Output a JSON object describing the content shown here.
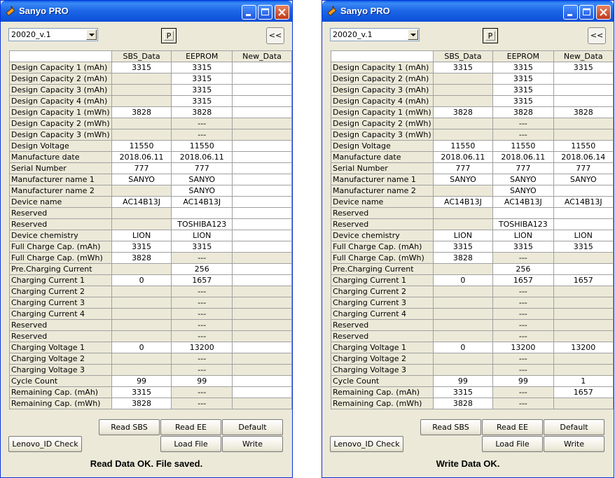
{
  "windows": [
    {
      "title": "Sanyo PRO",
      "combo_value": "20020_v.1",
      "p_button": "P",
      "back_button": "<<",
      "columns": [
        "SBS_Data",
        "EEPROM",
        "New_Data"
      ],
      "rows": [
        {
          "label": "Design Capacity 1 (mAh)",
          "sbs": "3315",
          "ee": "3315",
          "new": "",
          "sbs_f": true,
          "ee_f": true,
          "new_f": true
        },
        {
          "label": "Design Capacity 2 (mAh)",
          "sbs": "",
          "ee": "3315",
          "new": "",
          "sbs_f": false,
          "ee_f": true,
          "new_f": true
        },
        {
          "label": "Design Capacity 3 (mAh)",
          "sbs": "",
          "ee": "3315",
          "new": "",
          "sbs_f": false,
          "ee_f": true,
          "new_f": true
        },
        {
          "label": "Design Capacity 4 (mAh)",
          "sbs": "",
          "ee": "3315",
          "new": "",
          "sbs_f": false,
          "ee_f": true,
          "new_f": true
        },
        {
          "label": "Design Capacity 1 (mWh)",
          "sbs": "3828",
          "ee": "3828",
          "new": "",
          "sbs_f": true,
          "ee_f": true,
          "new_f": true
        },
        {
          "label": "Design Capacity 2 (mWh)",
          "sbs": "",
          "ee": "---",
          "new": "",
          "sbs_f": false,
          "ee_f": false,
          "new_f": false
        },
        {
          "label": "Design Capacity 3 (mWh)",
          "sbs": "",
          "ee": "---",
          "new": "",
          "sbs_f": false,
          "ee_f": false,
          "new_f": false
        },
        {
          "label": "Design Voltage",
          "sbs": "11550",
          "ee": "11550",
          "new": "",
          "sbs_f": true,
          "ee_f": true,
          "new_f": true
        },
        {
          "label": "Manufacture date",
          "sbs": "2018.06.11",
          "ee": "2018.06.11",
          "new": "",
          "sbs_f": true,
          "ee_f": true,
          "new_f": true
        },
        {
          "label": "Serial Number",
          "sbs": "777",
          "ee": "777",
          "new": "",
          "sbs_f": true,
          "ee_f": true,
          "new_f": true
        },
        {
          "label": "Manufacturer name 1",
          "sbs": "SANYO",
          "ee": "SANYO",
          "new": "",
          "sbs_f": true,
          "ee_f": true,
          "new_f": true
        },
        {
          "label": "Manufacturer name 2",
          "sbs": "",
          "ee": "SANYO",
          "new": "",
          "sbs_f": false,
          "ee_f": true,
          "new_f": true
        },
        {
          "label": "Device name",
          "sbs": "AC14B13J",
          "ee": "AC14B13J",
          "new": "",
          "sbs_f": true,
          "ee_f": true,
          "new_f": true
        },
        {
          "label": "Reserved",
          "sbs": "",
          "ee": "",
          "new": "",
          "sbs_f": false,
          "ee_f": true,
          "new_f": true
        },
        {
          "label": "Reserved",
          "sbs": "",
          "ee": "TOSHIBA123",
          "new": "",
          "sbs_f": false,
          "ee_f": true,
          "new_f": true
        },
        {
          "label": "Device chemistry",
          "sbs": "LION",
          "ee": "LION",
          "new": "",
          "sbs_f": true,
          "ee_f": true,
          "new_f": true
        },
        {
          "label": "Full Charge Cap.  (mAh)",
          "sbs": "3315",
          "ee": "3315",
          "new": "",
          "sbs_f": true,
          "ee_f": true,
          "new_f": true
        },
        {
          "label": "Full Charge Cap.  (mWh)",
          "sbs": "3828",
          "ee": "---",
          "new": "",
          "sbs_f": true,
          "ee_f": false,
          "new_f": false
        },
        {
          "label": "Pre.Charging Current",
          "sbs": "",
          "ee": "256",
          "new": "",
          "sbs_f": false,
          "ee_f": true,
          "new_f": true
        },
        {
          "label": "Charging Current 1",
          "sbs": "0",
          "ee": "1657",
          "new": "",
          "sbs_f": true,
          "ee_f": true,
          "new_f": true
        },
        {
          "label": "Charging Current 2",
          "sbs": "",
          "ee": "---",
          "new": "",
          "sbs_f": false,
          "ee_f": false,
          "new_f": false
        },
        {
          "label": "Charging Current 3",
          "sbs": "",
          "ee": "---",
          "new": "",
          "sbs_f": false,
          "ee_f": false,
          "new_f": false
        },
        {
          "label": "Charging Current 4",
          "sbs": "",
          "ee": "---",
          "new": "",
          "sbs_f": false,
          "ee_f": false,
          "new_f": false
        },
        {
          "label": "Reserved",
          "sbs": "",
          "ee": "---",
          "new": "",
          "sbs_f": false,
          "ee_f": false,
          "new_f": false
        },
        {
          "label": "Reserved",
          "sbs": "",
          "ee": "---",
          "new": "",
          "sbs_f": false,
          "ee_f": false,
          "new_f": false
        },
        {
          "label": "Charging Voltage 1",
          "sbs": "0",
          "ee": "13200",
          "new": "",
          "sbs_f": true,
          "ee_f": true,
          "new_f": true
        },
        {
          "label": "Charging Voltage 2",
          "sbs": "",
          "ee": "---",
          "new": "",
          "sbs_f": false,
          "ee_f": false,
          "new_f": false
        },
        {
          "label": "Charging Voltage 3",
          "sbs": "",
          "ee": "---",
          "new": "",
          "sbs_f": false,
          "ee_f": false,
          "new_f": false
        },
        {
          "label": "Cycle Count",
          "sbs": "99",
          "ee": "99",
          "new": "",
          "sbs_f": true,
          "ee_f": true,
          "new_f": true
        },
        {
          "label": "Remaining  Cap.  (mAh)",
          "sbs": "3315",
          "ee": "---",
          "new": "",
          "sbs_f": true,
          "ee_f": false,
          "new_f": true
        },
        {
          "label": "Remaining  Cap.  (mWh)",
          "sbs": "3828",
          "ee": "---",
          "new": "",
          "sbs_f": true,
          "ee_f": false,
          "new_f": false
        }
      ],
      "buttons": {
        "read_sbs": "Read SBS",
        "read_ee": "Read  EE",
        "default": "Default",
        "lenovo": "Lenovo_ID Check",
        "load_file": "Load File",
        "write": "Write"
      },
      "status": "Read Data OK. File saved."
    },
    {
      "title": "Sanyo PRO",
      "combo_value": "20020_v.1",
      "p_button": "P",
      "back_button": "<<",
      "columns": [
        "SBS_Data",
        "EEPROM",
        "New_Data"
      ],
      "rows": [
        {
          "label": "Design Capacity 1 (mAh)",
          "sbs": "3315",
          "ee": "3315",
          "new": "3315",
          "sbs_f": true,
          "ee_f": true,
          "new_f": true
        },
        {
          "label": "Design Capacity 2 (mAh)",
          "sbs": "",
          "ee": "3315",
          "new": "",
          "sbs_f": false,
          "ee_f": true,
          "new_f": true
        },
        {
          "label": "Design Capacity 3 (mAh)",
          "sbs": "",
          "ee": "3315",
          "new": "",
          "sbs_f": false,
          "ee_f": true,
          "new_f": true
        },
        {
          "label": "Design Capacity 4 (mAh)",
          "sbs": "",
          "ee": "3315",
          "new": "",
          "sbs_f": false,
          "ee_f": true,
          "new_f": true
        },
        {
          "label": "Design Capacity 1 (mWh)",
          "sbs": "3828",
          "ee": "3828",
          "new": "3828",
          "sbs_f": true,
          "ee_f": true,
          "new_f": true
        },
        {
          "label": "Design Capacity 2 (mWh)",
          "sbs": "",
          "ee": "---",
          "new": "",
          "sbs_f": false,
          "ee_f": false,
          "new_f": false
        },
        {
          "label": "Design Capacity 3 (mWh)",
          "sbs": "",
          "ee": "---",
          "new": "",
          "sbs_f": false,
          "ee_f": false,
          "new_f": false
        },
        {
          "label": "Design Voltage",
          "sbs": "11550",
          "ee": "11550",
          "new": "11550",
          "sbs_f": true,
          "ee_f": true,
          "new_f": true
        },
        {
          "label": "Manufacture date",
          "sbs": "2018.06.11",
          "ee": "2018.06.11",
          "new": "2018.06.14",
          "sbs_f": true,
          "ee_f": true,
          "new_f": true
        },
        {
          "label": "Serial Number",
          "sbs": "777",
          "ee": "777",
          "new": "777",
          "sbs_f": true,
          "ee_f": true,
          "new_f": true
        },
        {
          "label": "Manufacturer name 1",
          "sbs": "SANYO",
          "ee": "SANYO",
          "new": "SANYO",
          "sbs_f": true,
          "ee_f": true,
          "new_f": true
        },
        {
          "label": "Manufacturer name 2",
          "sbs": "",
          "ee": "SANYO",
          "new": "",
          "sbs_f": false,
          "ee_f": true,
          "new_f": true
        },
        {
          "label": "Device name",
          "sbs": "AC14B13J",
          "ee": "AC14B13J",
          "new": "AC14B13J",
          "sbs_f": true,
          "ee_f": true,
          "new_f": true
        },
        {
          "label": "Reserved",
          "sbs": "",
          "ee": "",
          "new": "",
          "sbs_f": false,
          "ee_f": true,
          "new_f": true
        },
        {
          "label": "Reserved",
          "sbs": "",
          "ee": "TOSHIBA123",
          "new": "",
          "sbs_f": false,
          "ee_f": true,
          "new_f": true
        },
        {
          "label": "Device chemistry",
          "sbs": "LION",
          "ee": "LION",
          "new": "LION",
          "sbs_f": true,
          "ee_f": true,
          "new_f": true
        },
        {
          "label": "Full Charge Cap.  (mAh)",
          "sbs": "3315",
          "ee": "3315",
          "new": "3315",
          "sbs_f": true,
          "ee_f": true,
          "new_f": true
        },
        {
          "label": "Full Charge Cap.  (mWh)",
          "sbs": "3828",
          "ee": "---",
          "new": "",
          "sbs_f": true,
          "ee_f": false,
          "new_f": false
        },
        {
          "label": "Pre.Charging Current",
          "sbs": "",
          "ee": "256",
          "new": "",
          "sbs_f": false,
          "ee_f": true,
          "new_f": true
        },
        {
          "label": "Charging Current 1",
          "sbs": "0",
          "ee": "1657",
          "new": "1657",
          "sbs_f": true,
          "ee_f": true,
          "new_f": true
        },
        {
          "label": "Charging Current 2",
          "sbs": "",
          "ee": "---",
          "new": "",
          "sbs_f": false,
          "ee_f": false,
          "new_f": false
        },
        {
          "label": "Charging Current 3",
          "sbs": "",
          "ee": "---",
          "new": "",
          "sbs_f": false,
          "ee_f": false,
          "new_f": false
        },
        {
          "label": "Charging Current 4",
          "sbs": "",
          "ee": "---",
          "new": "",
          "sbs_f": false,
          "ee_f": false,
          "new_f": false
        },
        {
          "label": "Reserved",
          "sbs": "",
          "ee": "---",
          "new": "",
          "sbs_f": false,
          "ee_f": false,
          "new_f": false
        },
        {
          "label": "Reserved",
          "sbs": "",
          "ee": "---",
          "new": "",
          "sbs_f": false,
          "ee_f": false,
          "new_f": false
        },
        {
          "label": "Charging Voltage 1",
          "sbs": "0",
          "ee": "13200",
          "new": "13200",
          "sbs_f": true,
          "ee_f": true,
          "new_f": true
        },
        {
          "label": "Charging Voltage 2",
          "sbs": "",
          "ee": "---",
          "new": "",
          "sbs_f": false,
          "ee_f": false,
          "new_f": false
        },
        {
          "label": "Charging Voltage 3",
          "sbs": "",
          "ee": "---",
          "new": "",
          "sbs_f": false,
          "ee_f": false,
          "new_f": false
        },
        {
          "label": "Cycle Count",
          "sbs": "99",
          "ee": "99",
          "new": "1",
          "sbs_f": true,
          "ee_f": true,
          "new_f": true
        },
        {
          "label": "Remaining  Cap.  (mAh)",
          "sbs": "3315",
          "ee": "---",
          "new": "1657",
          "sbs_f": true,
          "ee_f": false,
          "new_f": true
        },
        {
          "label": "Remaining  Cap.  (mWh)",
          "sbs": "3828",
          "ee": "---",
          "new": "",
          "sbs_f": true,
          "ee_f": false,
          "new_f": false
        }
      ],
      "buttons": {
        "read_sbs": "Read SBS",
        "read_ee": "Read  EE",
        "default": "Default",
        "lenovo": "Lenovo_ID Check",
        "load_file": "Load File",
        "write": "Write"
      },
      "status": "Write Data OK."
    }
  ]
}
